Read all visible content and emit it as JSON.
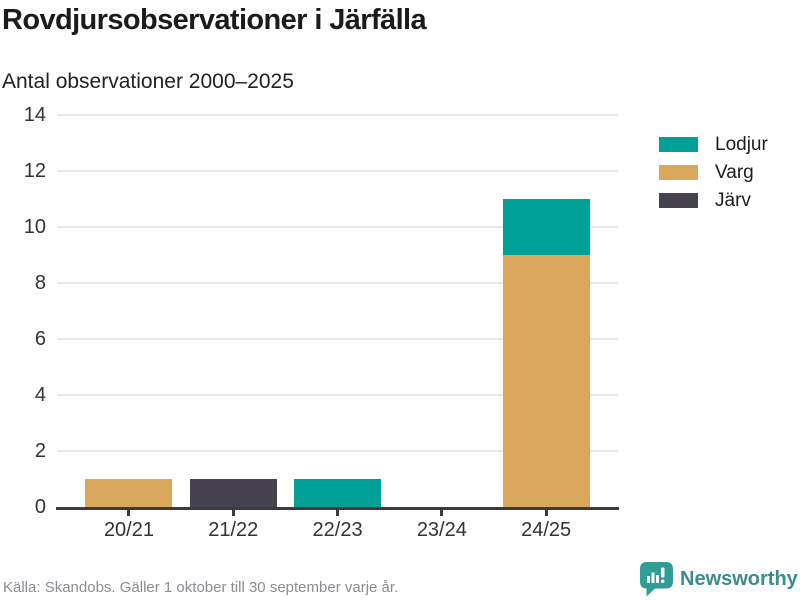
{
  "header": {
    "title": "Rovdjursobservationer i Järfälla",
    "subtitle": "Antal observationer 2000–2025"
  },
  "chart_data": {
    "type": "bar",
    "stacked": true,
    "title": "Rovdjursobservationer i Järfälla",
    "subtitle": "Antal observationer 2000–2025",
    "categories": [
      "20/21",
      "21/22",
      "22/23",
      "23/24",
      "24/25"
    ],
    "series": [
      {
        "name": "Lodjur",
        "color": "#00A096",
        "values": [
          0,
          0,
          1,
          0,
          2
        ]
      },
      {
        "name": "Varg",
        "color": "#D9A85C",
        "values": [
          1,
          0,
          0,
          0,
          9
        ]
      },
      {
        "name": "Järv",
        "color": "#45414E",
        "values": [
          0,
          1,
          0,
          0,
          0
        ]
      }
    ],
    "ylim": [
      0,
      14
    ],
    "ytick_step": 2,
    "grid": "horizontal",
    "legend_position": "right"
  },
  "footer": {
    "source": "Källa: Skandobs. Gäller 1 oktober till 30 september varje år.",
    "brand": "Newsworthy"
  },
  "colors": {
    "lodjur": "#00A096",
    "varg": "#D9A85C",
    "jarv": "#45414E",
    "grid_line": "#E8E8E8",
    "axis_line": "#3B3B3B",
    "title_text": "#1B1B1B",
    "label_text": "#333333",
    "muted_text": "#8C8C94",
    "brand_text": "#3A8D8B",
    "brand_icon": "#2F9D95",
    "background": "#FFFFFF"
  }
}
